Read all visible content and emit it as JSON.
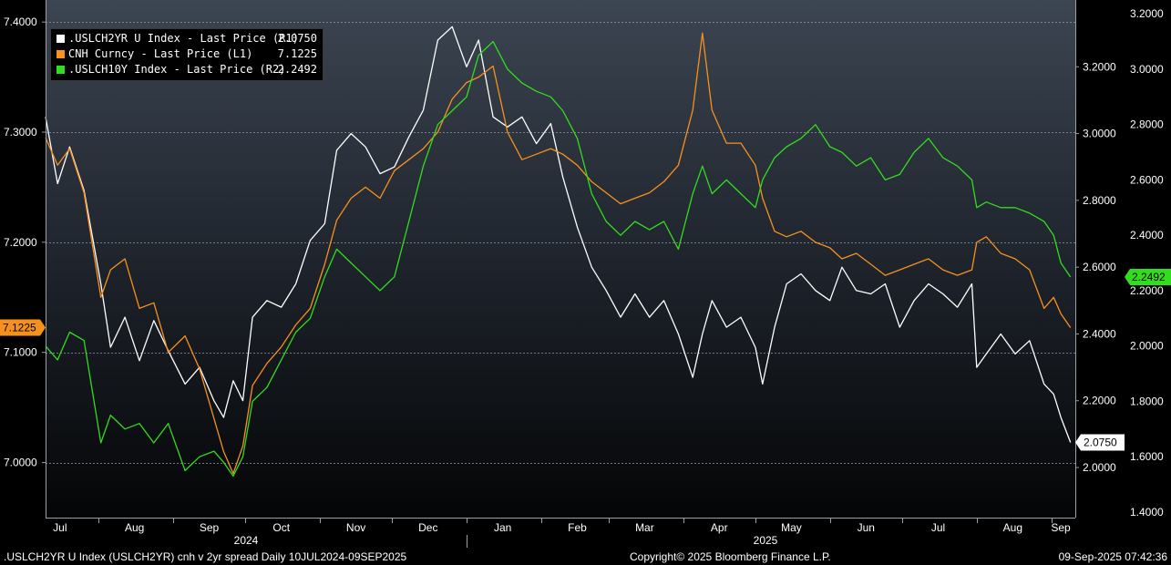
{
  "chart_data": {
    "type": "line",
    "legend_position": "top-left",
    "grid": true,
    "x_ticks": [
      "Jul",
      "Aug",
      "Sep",
      "Oct",
      "Nov",
      "Dec",
      "Jan",
      "Feb",
      "Mar",
      "Apr",
      "May",
      "Jun",
      "Jul",
      "Aug",
      "Sep"
    ],
    "x_year_labels": [
      "2024",
      "2025"
    ],
    "left_axis": {
      "ticks": [
        "7.4000",
        "7.3000",
        "7.2000",
        "7.1000",
        "7.0000"
      ],
      "ylim": [
        6.95,
        7.42
      ]
    },
    "right_axis_r1": {
      "ticks": [
        "3.2000",
        "3.0000",
        "2.8000",
        "2.6000",
        "2.4000",
        "2.2000",
        "2.0000"
      ],
      "ylim": [
        1.85,
        3.4
      ]
    },
    "right_axis_r2": {
      "ticks": [
        "3.2000",
        "3.0000",
        "2.8000",
        "2.6000",
        "2.4000",
        "2.2000",
        "2.0000",
        "1.8000",
        "1.6000",
        "1.4000"
      ],
      "ylim": [
        1.38,
        3.25
      ]
    },
    "series": [
      {
        "name": ".USLCH2YR U Index - Last Price (R1)",
        "last": "2.0750",
        "color": "#ffffff",
        "axis": "R1",
        "points": [
          [
            "2024-07-10",
            3.05
          ],
          [
            "2024-07-15",
            2.85
          ],
          [
            "2024-07-20",
            2.96
          ],
          [
            "2024-07-26",
            2.83
          ],
          [
            "2024-08-02",
            2.55
          ],
          [
            "2024-08-06",
            2.36
          ],
          [
            "2024-08-12",
            2.45
          ],
          [
            "2024-08-18",
            2.32
          ],
          [
            "2024-08-24",
            2.44
          ],
          [
            "2024-08-30",
            2.35
          ],
          [
            "2024-09-06",
            2.25
          ],
          [
            "2024-09-12",
            2.3
          ],
          [
            "2024-09-18",
            2.2
          ],
          [
            "2024-09-22",
            2.15
          ],
          [
            "2024-09-26",
            2.26
          ],
          [
            "2024-09-30",
            2.2
          ],
          [
            "2024-10-04",
            2.45
          ],
          [
            "2024-10-10",
            2.5
          ],
          [
            "2024-10-16",
            2.48
          ],
          [
            "2024-10-22",
            2.55
          ],
          [
            "2024-10-28",
            2.68
          ],
          [
            "2024-11-03",
            2.73
          ],
          [
            "2024-11-08",
            2.95
          ],
          [
            "2024-11-14",
            3.0
          ],
          [
            "2024-11-20",
            2.96
          ],
          [
            "2024-11-26",
            2.88
          ],
          [
            "2024-12-02",
            2.9
          ],
          [
            "2024-12-08",
            2.99
          ],
          [
            "2024-12-14",
            3.07
          ],
          [
            "2024-12-20",
            3.28
          ],
          [
            "2024-12-26",
            3.32
          ],
          [
            "2025-01-01",
            3.2
          ],
          [
            "2025-01-06",
            3.28
          ],
          [
            "2025-01-12",
            3.05
          ],
          [
            "2025-01-18",
            3.02
          ],
          [
            "2025-01-24",
            3.05
          ],
          [
            "2025-01-30",
            2.97
          ],
          [
            "2025-02-05",
            3.03
          ],
          [
            "2025-02-10",
            2.87
          ],
          [
            "2025-02-16",
            2.72
          ],
          [
            "2025-02-22",
            2.6
          ],
          [
            "2025-02-28",
            2.53
          ],
          [
            "2025-03-06",
            2.45
          ],
          [
            "2025-03-12",
            2.52
          ],
          [
            "2025-03-18",
            2.45
          ],
          [
            "2025-03-24",
            2.5
          ],
          [
            "2025-03-30",
            2.4
          ],
          [
            "2025-04-05",
            2.27
          ],
          [
            "2025-04-09",
            2.4
          ],
          [
            "2025-04-13",
            2.5
          ],
          [
            "2025-04-19",
            2.42
          ],
          [
            "2025-04-25",
            2.45
          ],
          [
            "2025-05-01",
            2.36
          ],
          [
            "2025-05-04",
            2.25
          ],
          [
            "2025-05-09",
            2.42
          ],
          [
            "2025-05-14",
            2.55
          ],
          [
            "2025-05-20",
            2.58
          ],
          [
            "2025-05-26",
            2.53
          ],
          [
            "2025-06-01",
            2.5
          ],
          [
            "2025-06-06",
            2.6
          ],
          [
            "2025-06-12",
            2.53
          ],
          [
            "2025-06-18",
            2.52
          ],
          [
            "2025-06-24",
            2.55
          ],
          [
            "2025-06-30",
            2.42
          ],
          [
            "2025-07-06",
            2.5
          ],
          [
            "2025-07-12",
            2.55
          ],
          [
            "2025-07-18",
            2.52
          ],
          [
            "2025-07-24",
            2.48
          ],
          [
            "2025-07-30",
            2.55
          ],
          [
            "2025-08-01",
            2.3
          ],
          [
            "2025-08-05",
            2.34
          ],
          [
            "2025-08-11",
            2.4
          ],
          [
            "2025-08-17",
            2.34
          ],
          [
            "2025-08-23",
            2.38
          ],
          [
            "2025-08-29",
            2.25
          ],
          [
            "2025-09-02",
            2.22
          ],
          [
            "2025-09-05",
            2.15
          ],
          [
            "2025-09-09",
            2.075
          ]
        ]
      },
      {
        "name": "CNH Curncy - Last Price (L1)",
        "last": "7.1225",
        "color": "#f6911e",
        "axis": "L1",
        "points": [
          [
            "2024-07-10",
            7.295
          ],
          [
            "2024-07-15",
            7.27
          ],
          [
            "2024-07-20",
            7.285
          ],
          [
            "2024-07-26",
            7.245
          ],
          [
            "2024-08-02",
            7.15
          ],
          [
            "2024-08-06",
            7.175
          ],
          [
            "2024-08-12",
            7.185
          ],
          [
            "2024-08-18",
            7.14
          ],
          [
            "2024-08-24",
            7.145
          ],
          [
            "2024-08-30",
            7.1
          ],
          [
            "2024-09-06",
            7.115
          ],
          [
            "2024-09-12",
            7.085
          ],
          [
            "2024-09-18",
            7.04
          ],
          [
            "2024-09-22",
            7.01
          ],
          [
            "2024-09-26",
            6.99
          ],
          [
            "2024-09-30",
            7.015
          ],
          [
            "2024-10-04",
            7.07
          ],
          [
            "2024-10-10",
            7.09
          ],
          [
            "2024-10-16",
            7.105
          ],
          [
            "2024-10-22",
            7.125
          ],
          [
            "2024-10-28",
            7.14
          ],
          [
            "2024-11-03",
            7.18
          ],
          [
            "2024-11-08",
            7.22
          ],
          [
            "2024-11-14",
            7.24
          ],
          [
            "2024-11-20",
            7.25
          ],
          [
            "2024-11-26",
            7.24
          ],
          [
            "2024-12-02",
            7.265
          ],
          [
            "2024-12-08",
            7.275
          ],
          [
            "2024-12-14",
            7.285
          ],
          [
            "2024-12-20",
            7.3
          ],
          [
            "2024-12-26",
            7.33
          ],
          [
            "2025-01-01",
            7.345
          ],
          [
            "2025-01-06",
            7.35
          ],
          [
            "2025-01-12",
            7.36
          ],
          [
            "2025-01-18",
            7.3
          ],
          [
            "2025-01-24",
            7.275
          ],
          [
            "2025-01-30",
            7.28
          ],
          [
            "2025-02-05",
            7.285
          ],
          [
            "2025-02-10",
            7.28
          ],
          [
            "2025-02-16",
            7.27
          ],
          [
            "2025-02-22",
            7.255
          ],
          [
            "2025-02-28",
            7.245
          ],
          [
            "2025-03-06",
            7.235
          ],
          [
            "2025-03-12",
            7.24
          ],
          [
            "2025-03-18",
            7.245
          ],
          [
            "2025-03-24",
            7.255
          ],
          [
            "2025-03-30",
            7.27
          ],
          [
            "2025-04-05",
            7.32
          ],
          [
            "2025-04-09",
            7.39
          ],
          [
            "2025-04-13",
            7.32
          ],
          [
            "2025-04-19",
            7.29
          ],
          [
            "2025-04-25",
            7.29
          ],
          [
            "2025-05-01",
            7.27
          ],
          [
            "2025-05-04",
            7.24
          ],
          [
            "2025-05-09",
            7.21
          ],
          [
            "2025-05-14",
            7.205
          ],
          [
            "2025-05-20",
            7.21
          ],
          [
            "2025-05-26",
            7.2
          ],
          [
            "2025-06-01",
            7.195
          ],
          [
            "2025-06-06",
            7.185
          ],
          [
            "2025-06-12",
            7.19
          ],
          [
            "2025-06-18",
            7.18
          ],
          [
            "2025-06-24",
            7.17
          ],
          [
            "2025-06-30",
            7.175
          ],
          [
            "2025-07-06",
            7.18
          ],
          [
            "2025-07-12",
            7.185
          ],
          [
            "2025-07-18",
            7.175
          ],
          [
            "2025-07-24",
            7.17
          ],
          [
            "2025-07-30",
            7.175
          ],
          [
            "2025-08-01",
            7.2
          ],
          [
            "2025-08-05",
            7.205
          ],
          [
            "2025-08-11",
            7.19
          ],
          [
            "2025-08-17",
            7.185
          ],
          [
            "2025-08-23",
            7.175
          ],
          [
            "2025-08-29",
            7.14
          ],
          [
            "2025-09-02",
            7.15
          ],
          [
            "2025-09-05",
            7.135
          ],
          [
            "2025-09-09",
            7.1225
          ]
        ]
      },
      {
        "name": ".USLCH10Y Index - Last Price (R2)",
        "last": "2.2492",
        "color": "#32dc1e",
        "axis": "R2",
        "points": [
          [
            "2024-07-10",
            2.0
          ],
          [
            "2024-07-15",
            1.95
          ],
          [
            "2024-07-20",
            2.05
          ],
          [
            "2024-07-26",
            2.02
          ],
          [
            "2024-08-02",
            1.65
          ],
          [
            "2024-08-06",
            1.75
          ],
          [
            "2024-08-12",
            1.7
          ],
          [
            "2024-08-18",
            1.72
          ],
          [
            "2024-08-24",
            1.65
          ],
          [
            "2024-08-30",
            1.72
          ],
          [
            "2024-09-06",
            1.55
          ],
          [
            "2024-09-12",
            1.6
          ],
          [
            "2024-09-18",
            1.62
          ],
          [
            "2024-09-22",
            1.58
          ],
          [
            "2024-09-26",
            1.53
          ],
          [
            "2024-09-30",
            1.6
          ],
          [
            "2024-10-04",
            1.8
          ],
          [
            "2024-10-10",
            1.85
          ],
          [
            "2024-10-16",
            1.95
          ],
          [
            "2024-10-22",
            2.05
          ],
          [
            "2024-10-28",
            2.1
          ],
          [
            "2024-11-03",
            2.25
          ],
          [
            "2024-11-08",
            2.35
          ],
          [
            "2024-11-14",
            2.3
          ],
          [
            "2024-11-20",
            2.25
          ],
          [
            "2024-11-26",
            2.2
          ],
          [
            "2024-12-02",
            2.25
          ],
          [
            "2024-12-08",
            2.45
          ],
          [
            "2024-12-14",
            2.65
          ],
          [
            "2024-12-20",
            2.8
          ],
          [
            "2024-12-26",
            2.85
          ],
          [
            "2025-01-01",
            2.9
          ],
          [
            "2025-01-06",
            3.05
          ],
          [
            "2025-01-12",
            3.1
          ],
          [
            "2025-01-18",
            3.0
          ],
          [
            "2025-01-24",
            2.95
          ],
          [
            "2025-01-30",
            2.92
          ],
          [
            "2025-02-05",
            2.9
          ],
          [
            "2025-02-10",
            2.85
          ],
          [
            "2025-02-16",
            2.75
          ],
          [
            "2025-02-22",
            2.55
          ],
          [
            "2025-02-28",
            2.45
          ],
          [
            "2025-03-06",
            2.4
          ],
          [
            "2025-03-12",
            2.45
          ],
          [
            "2025-03-18",
            2.42
          ],
          [
            "2025-03-24",
            2.45
          ],
          [
            "2025-03-30",
            2.35
          ],
          [
            "2025-04-05",
            2.55
          ],
          [
            "2025-04-09",
            2.65
          ],
          [
            "2025-04-13",
            2.55
          ],
          [
            "2025-04-19",
            2.6
          ],
          [
            "2025-04-25",
            2.55
          ],
          [
            "2025-05-01",
            2.5
          ],
          [
            "2025-05-04",
            2.6
          ],
          [
            "2025-05-09",
            2.68
          ],
          [
            "2025-05-14",
            2.72
          ],
          [
            "2025-05-20",
            2.75
          ],
          [
            "2025-05-26",
            2.8
          ],
          [
            "2025-06-01",
            2.72
          ],
          [
            "2025-06-06",
            2.7
          ],
          [
            "2025-06-12",
            2.65
          ],
          [
            "2025-06-18",
            2.68
          ],
          [
            "2025-06-24",
            2.6
          ],
          [
            "2025-06-30",
            2.62
          ],
          [
            "2025-07-06",
            2.7
          ],
          [
            "2025-07-12",
            2.75
          ],
          [
            "2025-07-18",
            2.68
          ],
          [
            "2025-07-24",
            2.65
          ],
          [
            "2025-07-30",
            2.6
          ],
          [
            "2025-08-01",
            2.5
          ],
          [
            "2025-08-05",
            2.52
          ],
          [
            "2025-08-11",
            2.5
          ],
          [
            "2025-08-17",
            2.5
          ],
          [
            "2025-08-23",
            2.48
          ],
          [
            "2025-08-29",
            2.45
          ],
          [
            "2025-09-02",
            2.4
          ],
          [
            "2025-09-05",
            2.3
          ],
          [
            "2025-09-09",
            2.2492
          ]
        ]
      }
    ]
  },
  "footer": {
    "left": ".USLCH2YR U Index (USLCH2YR) cnh v 2yr spread  Daily 10JUL2024-09SEP2025",
    "center": "Copyright© 2025 Bloomberg Finance L.P.",
    "right": "09-Sep-2025 07:42:36"
  }
}
